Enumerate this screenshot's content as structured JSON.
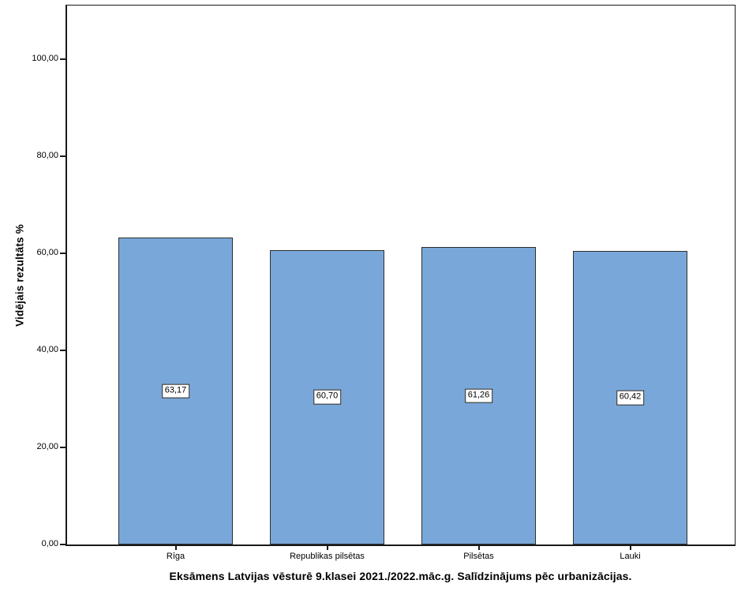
{
  "chart_data": {
    "type": "bar",
    "title": "Eksāmens Latvijas vēsturē 9.klasei 2021./2022.māc.g. Salīdzinājums pēc urbanizācijas.",
    "ylabel": "Vidējais rezultāts %",
    "xlabel": "",
    "categories": [
      "Rīga",
      "Republikas pilsētas",
      "Pilsētas",
      "Lauki"
    ],
    "values": [
      63.17,
      60.7,
      61.26,
      60.42
    ],
    "value_labels": [
      "63,17",
      "60,70",
      "61,26",
      "60,42"
    ],
    "y_ticks": [
      "0,00",
      "20,00",
      "40,00",
      "60,00",
      "80,00",
      "100,00"
    ],
    "y_tick_values": [
      0,
      20,
      40,
      60,
      80,
      100
    ],
    "ylim": [
      0,
      111
    ],
    "grid": false,
    "legend": "none",
    "bar_color": "#79A7D9",
    "bar_border_color": "#2f2f2f"
  }
}
